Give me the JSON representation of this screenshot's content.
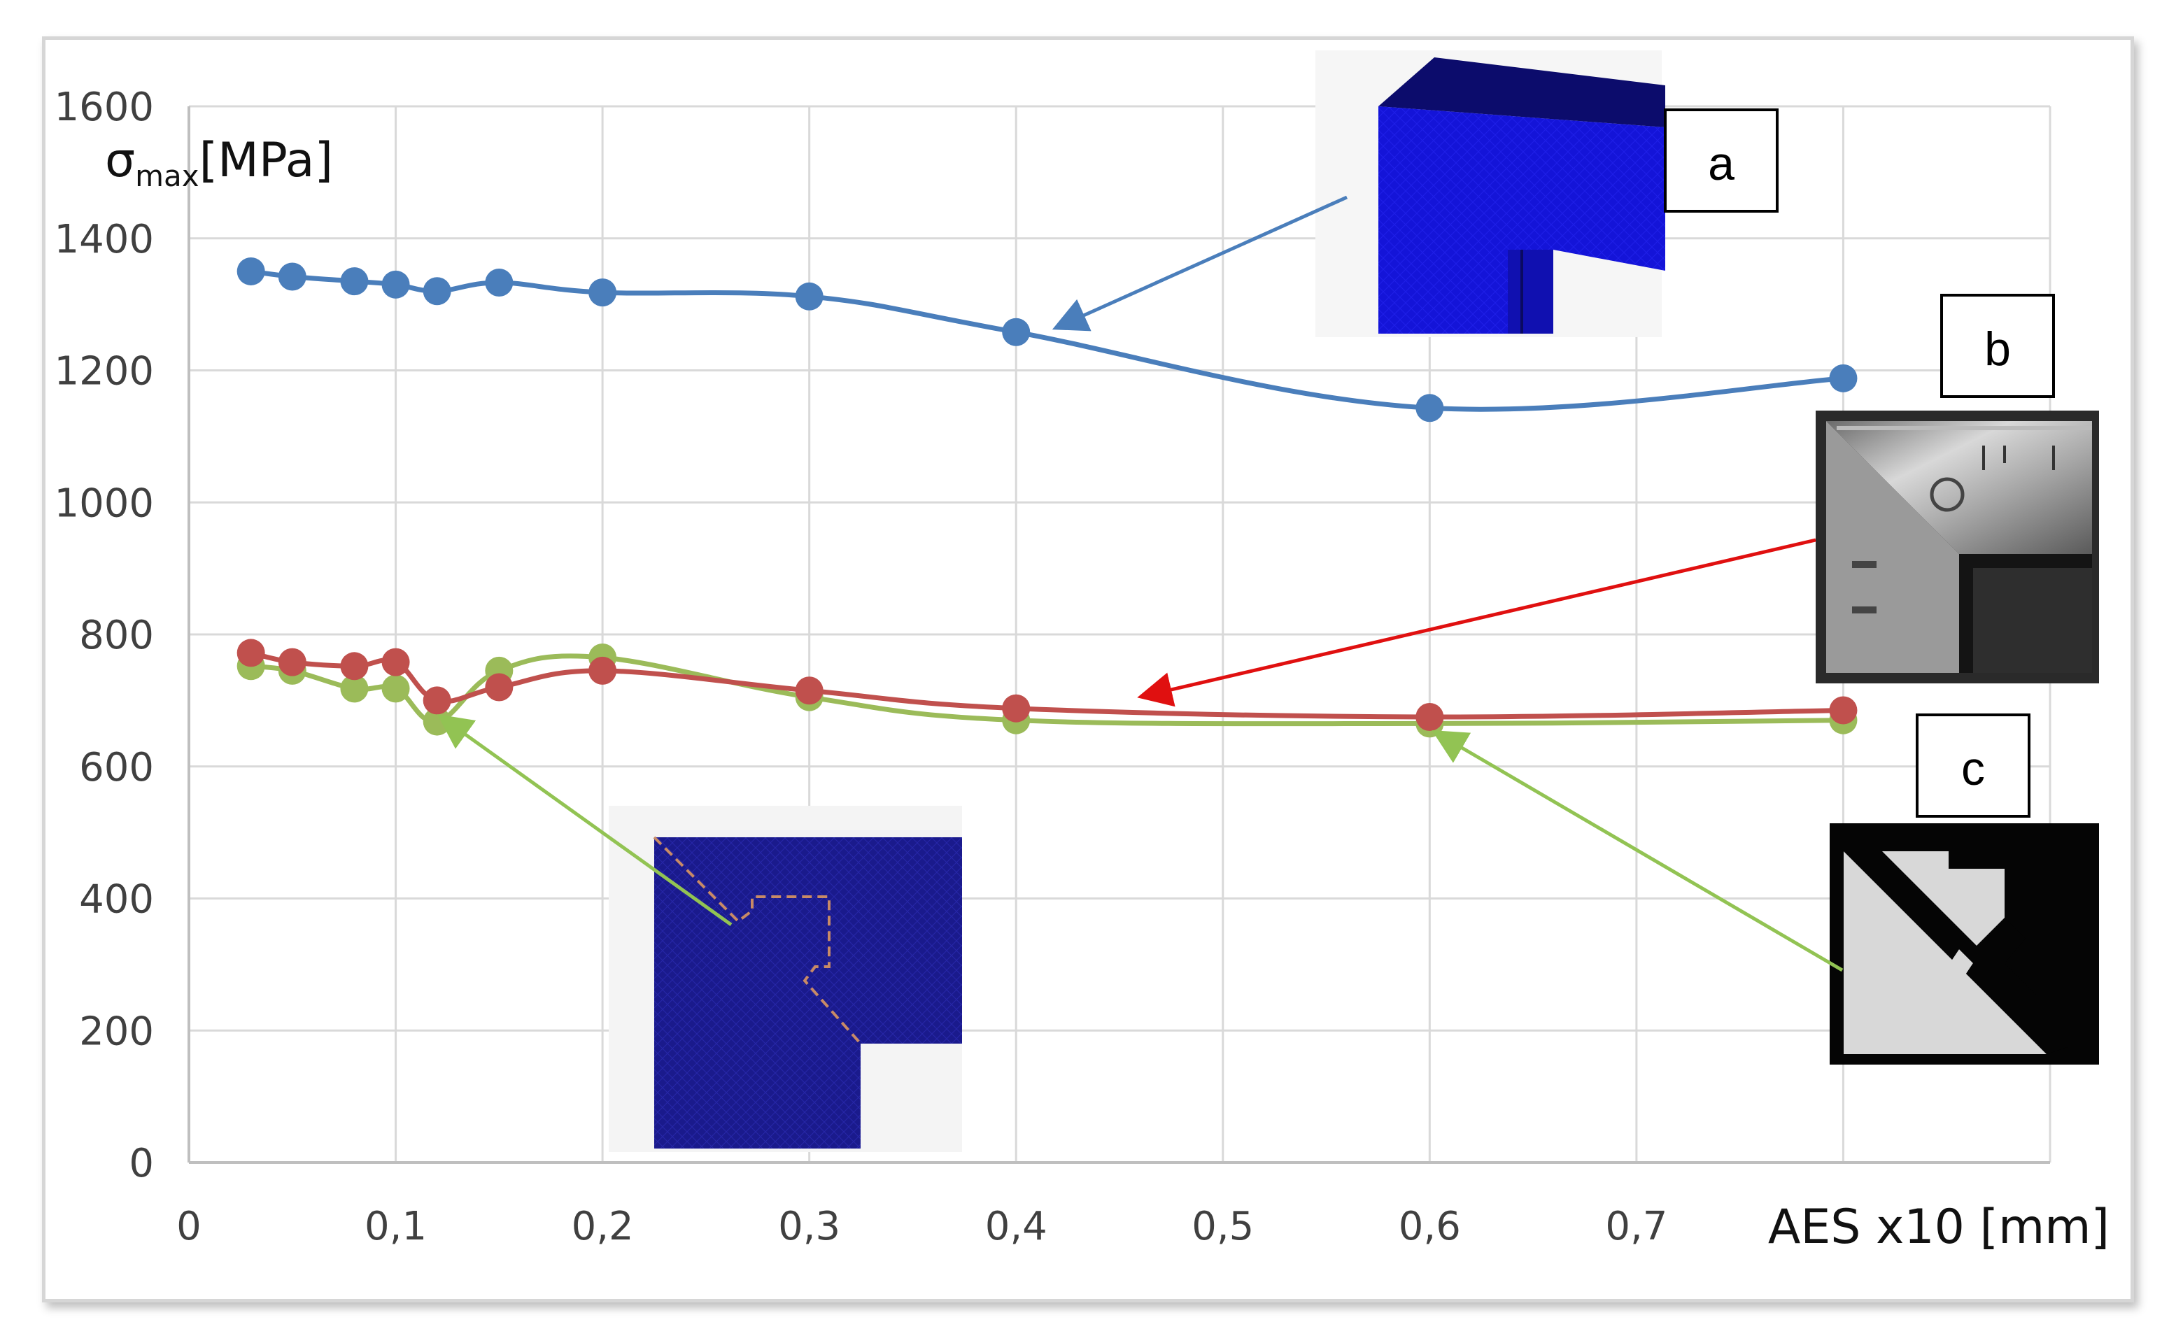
{
  "chart_data": {
    "type": "line",
    "xlabel": "AES x10 [mm]",
    "ylabel_symbol": "σ",
    "ylabel_subscript": "max",
    "ylabel_unit": "[MPa]",
    "xlim": [
      0,
      0.9
    ],
    "ylim": [
      0,
      1600
    ],
    "x_ticks": [
      0,
      0.1,
      0.2,
      0.3,
      0.4,
      0.5,
      0.6,
      0.7
    ],
    "x_tick_labels": [
      "0",
      "0,1",
      "0,2",
      "0,3",
      "0,4",
      "0,5",
      "0,6",
      "0,7"
    ],
    "y_ticks": [
      0,
      200,
      400,
      600,
      800,
      1000,
      1200,
      1400,
      1600
    ],
    "y_tick_labels": [
      "0",
      "200",
      "400",
      "600",
      "800",
      "1000",
      "1200",
      "1400",
      "1600"
    ],
    "grid": true,
    "legend": "none",
    "series": [
      {
        "color": "#4a7ebb",
        "x": [
          0.03,
          0.05,
          0.08,
          0.1,
          0.12,
          0.15,
          0.2,
          0.3,
          0.4,
          0.6,
          0.8
        ],
        "values": [
          1350,
          1342,
          1335,
          1330,
          1320,
          1333,
          1318,
          1312,
          1258,
          1143,
          1188
        ]
      },
      {
        "color": "#c0504d",
        "x": [
          0.03,
          0.05,
          0.08,
          0.1,
          0.12,
          0.15,
          0.2,
          0.3,
          0.4,
          0.6,
          0.8
        ],
        "values": [
          772,
          758,
          752,
          758,
          700,
          720,
          745,
          715,
          688,
          675,
          685
        ]
      },
      {
        "color": "#9bbb59",
        "x": [
          0.03,
          0.05,
          0.08,
          0.1,
          0.12,
          0.15,
          0.2,
          0.3,
          0.4,
          0.6,
          0.8
        ],
        "values": [
          752,
          745,
          718,
          718,
          668,
          745,
          765,
          705,
          670,
          665,
          670
        ]
      }
    ],
    "annotations": [
      {
        "label": "a",
        "arrow_color": "#4a7ebb",
        "points_to": {
          "x": 0.4,
          "y": 1258
        }
      },
      {
        "label": "b",
        "arrow_color": "#e01010",
        "points_to": {
          "x": 0.44,
          "y": 688
        }
      },
      {
        "label": "c",
        "arrow_color": "#92c353",
        "points_to": {
          "x": 0.6,
          "y": 665
        }
      },
      {
        "label": "",
        "arrow_color": "#92c353",
        "points_to": {
          "x": 0.11,
          "y": 668
        }
      }
    ]
  }
}
